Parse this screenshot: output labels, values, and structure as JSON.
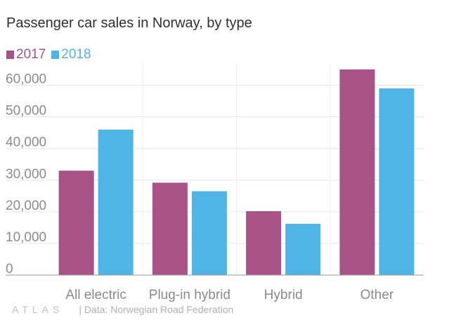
{
  "title": "Passenger car sales in Norway, by type",
  "colors": {
    "series_2017": "#a85288",
    "series_2018": "#4fb4e6",
    "grid": "#e6e6e6",
    "axis": "#999999",
    "tick_text": "#8c8c8c",
    "category_text": "#8a8a8a"
  },
  "legend": {
    "items": [
      {
        "label": "2017",
        "color": "#a85288"
      },
      {
        "label": "2018",
        "color": "#4fb4e6"
      }
    ],
    "placement": "top-left"
  },
  "footer": {
    "brand": "ATLAS",
    "source": "| Data: Norwegian Road Federation"
  },
  "chart_data": {
    "type": "bar",
    "title": "Passenger car sales in Norway, by type",
    "xlabel": "",
    "ylabel": "",
    "categories": [
      "All electric",
      "Plug-in hybrid",
      "Hybrid",
      "Other"
    ],
    "series": [
      {
        "name": "2017",
        "color": "#a85288",
        "values": [
          33000,
          29200,
          20200,
          65000
        ]
      },
      {
        "name": "2018",
        "color": "#4fb4e6",
        "values": [
          46000,
          26500,
          16200,
          59000
        ]
      }
    ],
    "ylim": [
      0,
      65000
    ],
    "yticks": [
      0,
      10000,
      20000,
      30000,
      40000,
      50000,
      60000
    ],
    "ytick_labels": [
      "0",
      "10,000",
      "20,000",
      "30,000",
      "40,000",
      "50,000",
      "60,000"
    ],
    "grid": true,
    "legend": "top-left"
  }
}
